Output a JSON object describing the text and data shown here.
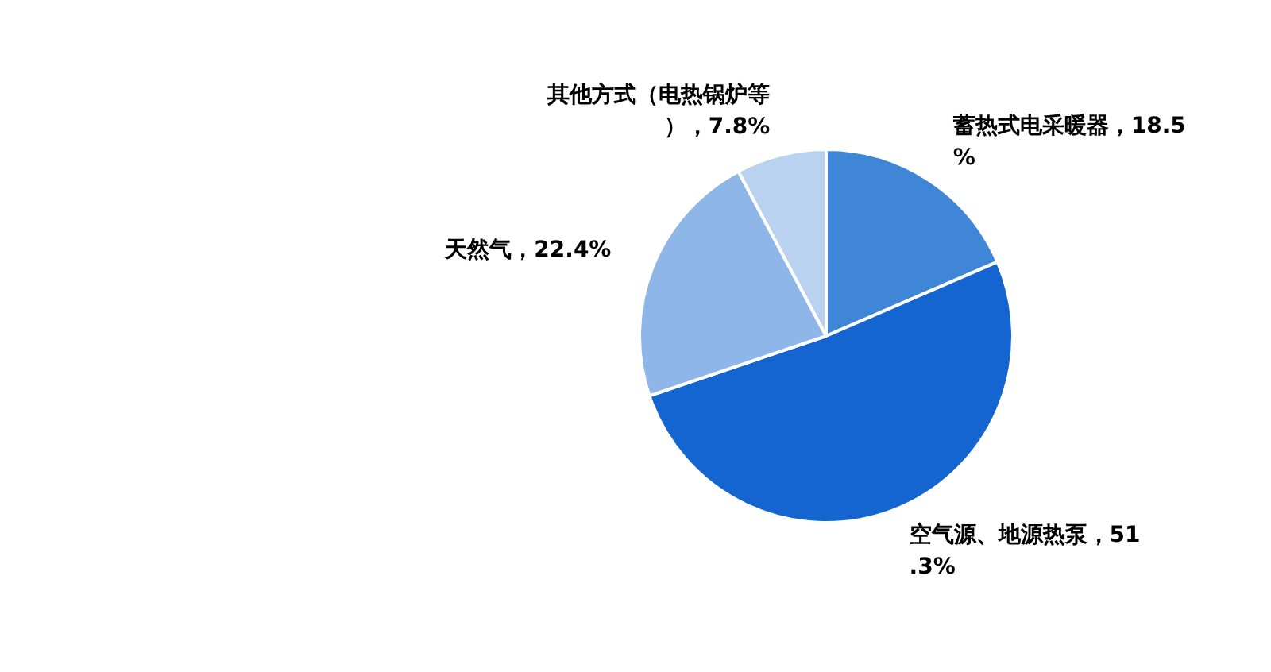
{
  "chart_data": {
    "type": "pie",
    "categories": [
      "蓄热式电采暖器",
      "空气源、地源热泵",
      "天然气",
      "其他方式（电热锅炉等）"
    ],
    "values": [
      18.5,
      51.3,
      22.4,
      7.8
    ],
    "value_labels": [
      "18.5%",
      "51.3%",
      "22.4%",
      "7.8%"
    ],
    "colors": [
      "#3f86d6",
      "#1565d0",
      "#8fb6e8",
      "#b9d2ef"
    ],
    "legend": false
  }
}
